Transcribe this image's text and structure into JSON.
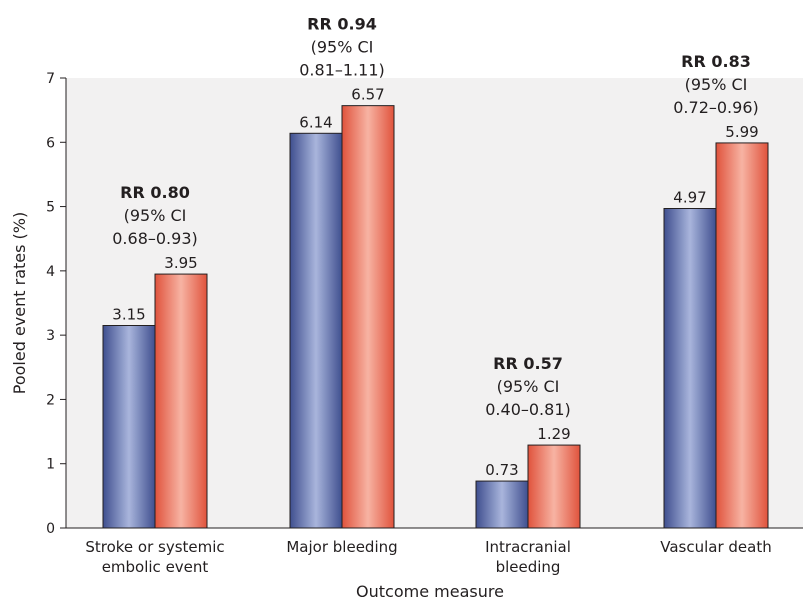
{
  "chart_data": {
    "type": "bar",
    "categories": [
      [
        "Stroke or systemic",
        "embolic event"
      ],
      [
        "Major bleeding"
      ],
      [
        "Intracranial",
        "bleeding"
      ],
      [
        "Vascular death"
      ]
    ],
    "series": [
      {
        "values": [
          3.15,
          6.14,
          0.73,
          4.97
        ],
        "labels": [
          "3.15",
          "6.14",
          "0.73",
          "4.97"
        ],
        "color": "#5a6aa8"
      },
      {
        "values": [
          3.95,
          6.57,
          1.29,
          5.99
        ],
        "labels": [
          "3.95",
          "6.57",
          "1.29",
          "5.99"
        ],
        "color": "#e8604a"
      }
    ],
    "annotations": [
      {
        "rr": "RR 0.80",
        "ci_open": "(95% CI",
        "ci_range": "0.68–0.93)"
      },
      {
        "rr": "RR 0.94",
        "ci_open": "(95% CI",
        "ci_range": "0.81–1.11)"
      },
      {
        "rr": "RR 0.57",
        "ci_open": "(95% CI",
        "ci_range": "0.40–0.81)"
      },
      {
        "rr": "RR 0.83",
        "ci_open": "(95% CI",
        "ci_range": "0.72–0.96)"
      }
    ],
    "xlabel": "Outcome measure",
    "ylabel": "Pooled event rates (%)",
    "ylim": [
      0,
      7
    ],
    "yticks": [
      "0",
      "1",
      "2",
      "3",
      "4",
      "5",
      "6",
      "7"
    ],
    "background": "#f2f1f1",
    "grid": false,
    "legend": "none"
  }
}
